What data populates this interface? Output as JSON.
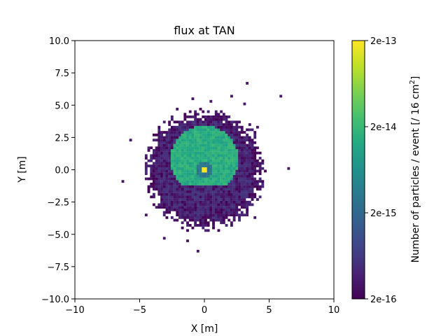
{
  "chart_data": {
    "type": "heatmap",
    "title": "flux at TAN",
    "xlabel": "X [m]",
    "ylabel": "Y [m]",
    "xlim": [
      -10,
      10
    ],
    "ylim": [
      -10,
      10
    ],
    "x_ticks": [
      "−10",
      "−5",
      "0",
      "5",
      "10"
    ],
    "y_ticks": [
      "10.0",
      "7.5",
      "5.0",
      "2.5",
      "0.0",
      "−2.5",
      "−5.0",
      "−7.5",
      "−10.0"
    ],
    "bin_size_m": 0.2,
    "colorscale": "viridis",
    "colorbar": {
      "label_main": "Number of particles / event [/ 16 cm",
      "label_sup": "2",
      "label_end": "]",
      "scale": "log",
      "ticks": [
        "2e-13",
        "2e-14",
        "2e-15",
        "2e-16"
      ],
      "range": [
        2e-16,
        2e-13
      ]
    },
    "regions": [
      {
        "name": "outer diffuse halo",
        "center": [
          0,
          0
        ],
        "radius_m": 4.5,
        "value": 3e-16
      },
      {
        "name": "inner D-shaped aperture",
        "center": [
          0,
          0.8
        ],
        "radius_m": 2.6,
        "y_floor_m": -1.2,
        "value": 1.5e-14
      },
      {
        "name": "central hole",
        "center": [
          0,
          0
        ],
        "radius_m": 0.6,
        "value": 3e-15
      },
      {
        "name": "beam spot",
        "center": [
          0,
          0
        ],
        "size_m": 0.4,
        "value": 2e-13
      }
    ],
    "grid": false
  }
}
